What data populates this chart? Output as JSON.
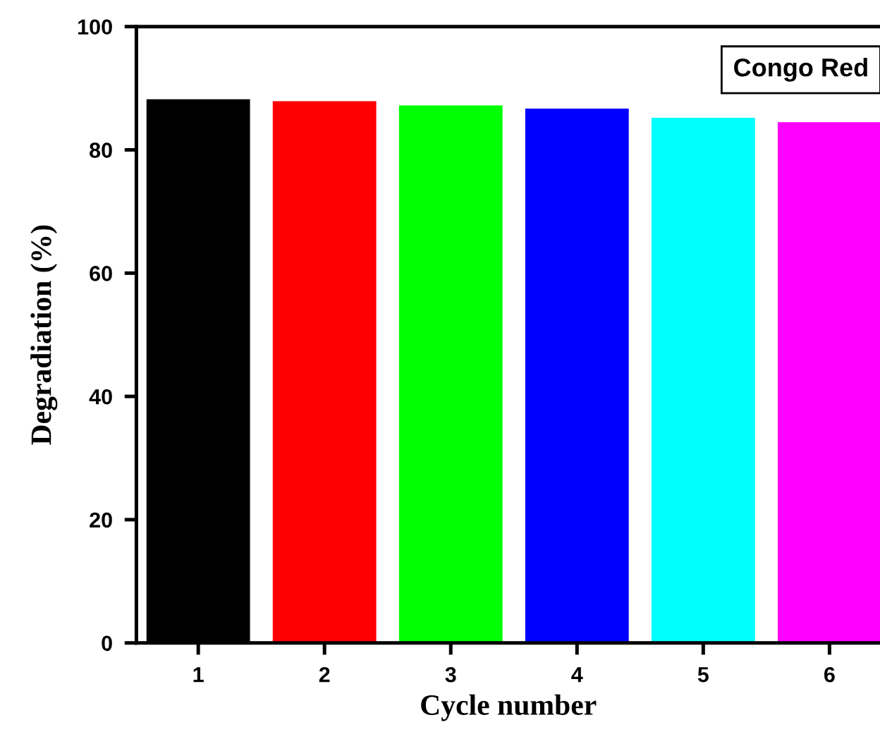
{
  "chart_data": {
    "type": "bar",
    "xlabel": "Cycle number",
    "ylabel": "Degradiation (%)",
    "categories": [
      "1",
      "2",
      "3",
      "4",
      "5",
      "6"
    ],
    "values": [
      88.2,
      87.9,
      87.2,
      86.7,
      85.2,
      84.5
    ],
    "colors": [
      "#000000",
      "#ff0000",
      "#00ff00",
      "#0000ff",
      "#00ffff",
      "#ff00ff"
    ],
    "ylim": [
      0,
      100
    ],
    "yticks": [
      0,
      20,
      40,
      60,
      80,
      100
    ],
    "grid": false,
    "annotations": [
      "Congo Red"
    ]
  }
}
